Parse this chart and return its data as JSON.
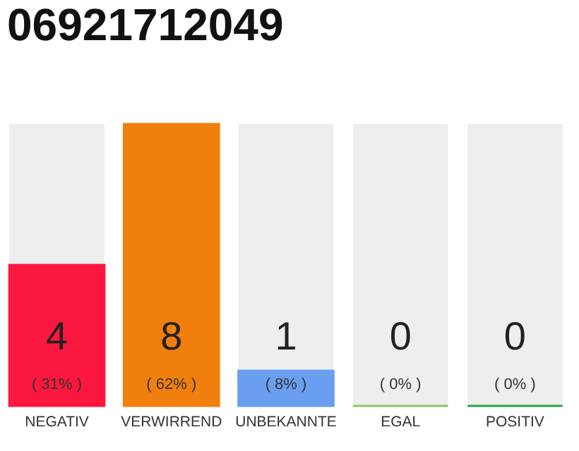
{
  "chart_data": {
    "type": "bar",
    "title": "06921712049",
    "categories": [
      "NEGATIV",
      "VERWIRREND",
      "UNBEKANNTE",
      "EGAL",
      "POSITIV"
    ],
    "values": [
      4,
      8,
      1,
      0,
      0
    ],
    "colors": [
      "#fc173f",
      "#f07f0d",
      "#6a9ff0",
      "#8bc56a",
      "#2aa54a"
    ],
    "data_labels": true,
    "annotations": [
      {
        "text": "( 31% )",
        "x": "NEGATIV",
        "y": 0
      },
      {
        "text": "( 62% )",
        "x": "VERWIRREND",
        "y": 0
      },
      {
        "text": "( 8% )",
        "x": "UNBEKANNTE",
        "y": 0
      },
      {
        "text": "( 0% )",
        "x": "EGAL",
        "y": 0
      },
      {
        "text": "( 0% )",
        "x": "POSITIV",
        "y": 0
      }
    ],
    "grid": false
  }
}
